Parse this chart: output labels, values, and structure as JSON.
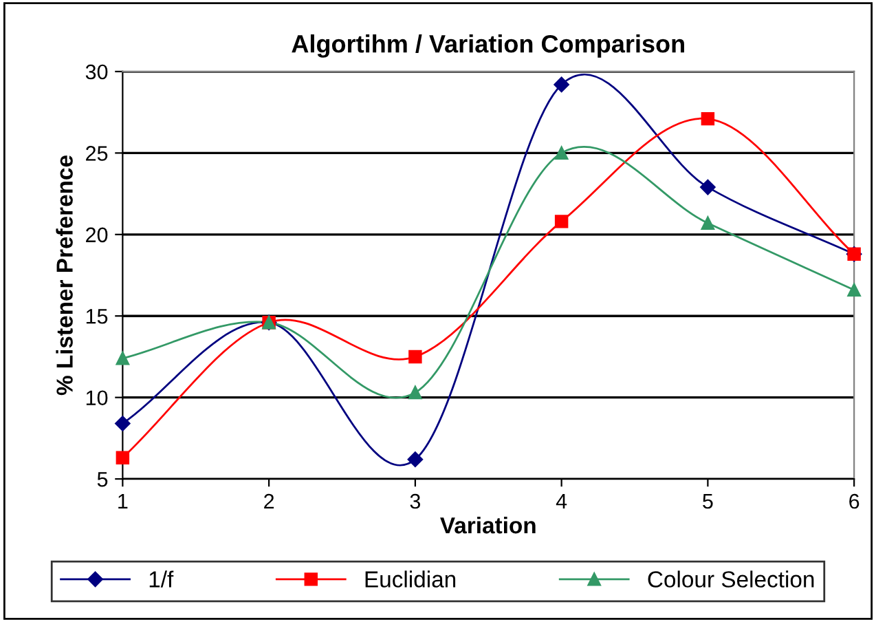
{
  "chart_data": {
    "type": "line",
    "title": "Algortihm / Variation Comparison",
    "xlabel": "Variation",
    "ylabel": "% Listener Preference",
    "x": [
      1,
      2,
      3,
      4,
      5,
      6
    ],
    "xlim": [
      1,
      6
    ],
    "xticks": [
      1,
      2,
      3,
      4,
      5,
      6
    ],
    "ylim": [
      5,
      30
    ],
    "yticks": [
      5,
      10,
      15,
      20,
      25,
      30
    ],
    "grid": "y",
    "legend": "bottom",
    "line_style": "solid",
    "series": [
      {
        "name": "1/f",
        "color": "#000080",
        "marker": "diamond",
        "values": [
          8.4,
          14.6,
          6.2,
          29.2,
          22.9,
          18.8
        ]
      },
      {
        "name": "Euclidian",
        "color": "#ff0000",
        "marker": "square",
        "values": [
          6.3,
          14.6,
          12.5,
          20.8,
          27.1,
          18.8
        ]
      },
      {
        "name": "Colour Selection",
        "color": "#339966",
        "marker": "triangle",
        "values": [
          12.4,
          14.6,
          10.3,
          25.0,
          20.7,
          16.6
        ]
      }
    ]
  }
}
